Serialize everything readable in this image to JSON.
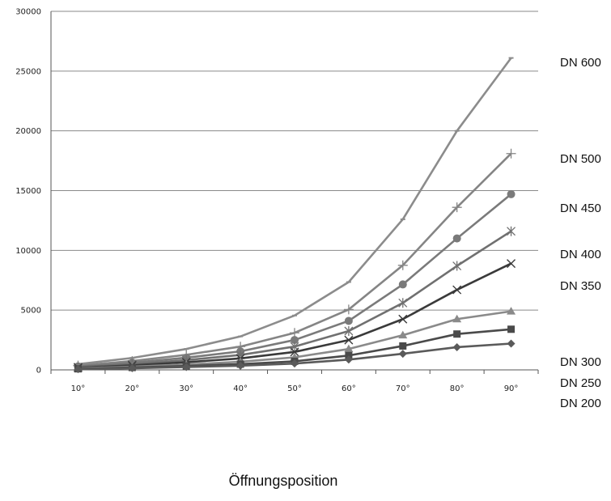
{
  "chart_data": {
    "type": "line",
    "title": "",
    "xlabel": "Öffnungsposition",
    "ylabel": "",
    "categories": [
      "10°",
      "20°",
      "30°",
      "40°",
      "50°",
      "60°",
      "70°",
      "80°",
      "90°"
    ],
    "ylim": [
      0,
      30000
    ],
    "yticks": [
      "0",
      "5000",
      "10000",
      "15000",
      "20000",
      "25000",
      "30000"
    ],
    "grid": "horizontal",
    "legend_placement": "right",
    "series": [
      {
        "name": "DN 200",
        "marker": "diamond",
        "color": "#5a5a5a",
        "values": [
          60,
          140,
          240,
          350,
          530,
          860,
          1350,
          1900,
          2200
        ]
      },
      {
        "name": "DN 250",
        "marker": "square",
        "color": "#4a4a4a",
        "values": [
          90,
          200,
          330,
          480,
          720,
          1200,
          2000,
          3000,
          3400
        ]
      },
      {
        "name": "DN 300",
        "marker": "triangle",
        "color": "#8a8a8a",
        "values": [
          130,
          270,
          450,
          680,
          1050,
          1750,
          2900,
          4250,
          4900
        ]
      },
      {
        "name": "DN 350",
        "marker": "x",
        "color": "#3a3a3a",
        "values": [
          180,
          380,
          640,
          960,
          1500,
          2500,
          4250,
          6700,
          8900
        ]
      },
      {
        "name": "DN 400",
        "marker": "star",
        "color": "#707070",
        "values": [
          230,
          480,
          820,
          1250,
          1950,
          3250,
          5600,
          8700,
          11600
        ]
      },
      {
        "name": "DN 450",
        "marker": "circle",
        "color": "#7a7a7a",
        "values": [
          290,
          600,
          1020,
          1550,
          2500,
          4100,
          7150,
          11000,
          14700
        ]
      },
      {
        "name": "DN 500",
        "marker": "plus",
        "color": "#858585",
        "values": [
          360,
          740,
          1260,
          1950,
          3100,
          5050,
          8750,
          13600,
          18100
        ]
      },
      {
        "name": "DN 600",
        "marker": "dash",
        "color": "#8c8c8c",
        "values": [
          480,
          1000,
          1750,
          2800,
          4550,
          7350,
          12600,
          20000,
          26100
        ]
      }
    ]
  }
}
